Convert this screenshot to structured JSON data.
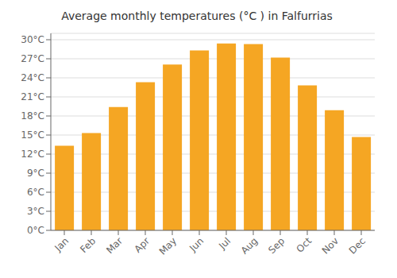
{
  "chart_data": {
    "type": "bar",
    "title": "Average monthly temperatures (°C ) in Falfurrias",
    "categories": [
      "Jan",
      "Feb",
      "Mar",
      "Apr",
      "May",
      "Jun",
      "Jul",
      "Aug",
      "Sep",
      "Oct",
      "Nov",
      "Dec"
    ],
    "values": [
      13.3,
      15.3,
      19.4,
      23.3,
      26.1,
      28.3,
      29.4,
      29.3,
      27.2,
      22.8,
      18.9,
      14.7
    ],
    "color": "#F5A623",
    "ylim": [
      0,
      31
    ],
    "yticks": [
      {
        "value": 0,
        "label": "0°C"
      },
      {
        "value": 3,
        "label": "3°C"
      },
      {
        "value": 6,
        "label": "6°C"
      },
      {
        "value": 9,
        "label": "9°C"
      },
      {
        "value": 12,
        "label": "12°C"
      },
      {
        "value": 15,
        "label": "15°C"
      },
      {
        "value": 18,
        "label": "18°C"
      },
      {
        "value": 21,
        "label": "21°C"
      },
      {
        "value": 24,
        "label": "24°C"
      },
      {
        "value": 27,
        "label": "27°C"
      },
      {
        "value": 30,
        "label": "30°C"
      }
    ],
    "grid": true
  }
}
